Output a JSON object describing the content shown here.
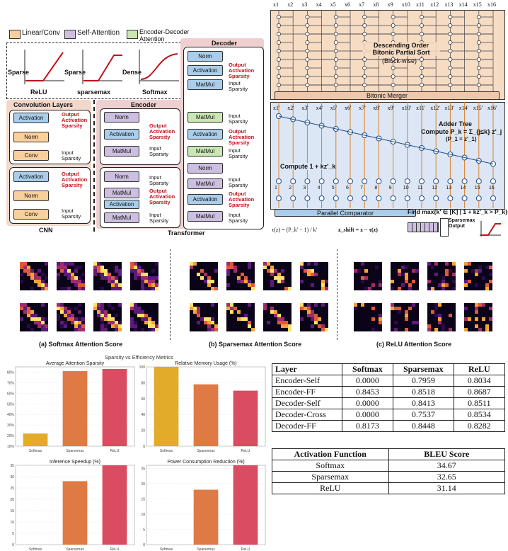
{
  "legend": {
    "linear": "Linear/Conv",
    "attn": "Self-Attention",
    "encdec": "Encoder-Decoder Attention"
  },
  "curves": {
    "relu": "ReLU",
    "sparsemax": "sparsemax",
    "softmax": "Softmax",
    "sparse": "Sparse",
    "dense": "Dense"
  },
  "cnn": {
    "title": "Convolution Layers",
    "label": "CNN",
    "blocks": [
      "Activation",
      "Norm",
      "Conv"
    ]
  },
  "encoder": {
    "title": "Encoder",
    "blocks": [
      "Norm",
      "Activation",
      "MatMul",
      "Norm",
      "MatMul",
      "Activation",
      "MatMul"
    ]
  },
  "decoder": {
    "title": "Decoder",
    "blocks": [
      "Norm",
      "Activation",
      "MatMul",
      "MatMul",
      "Activation",
      "MatMul",
      "Norm",
      "MatMul",
      "Activation",
      "MatMul"
    ]
  },
  "transformer_label": "Transformer",
  "annot": {
    "out": "Output Activation Sparsity",
    "in": "Input Sparsity"
  },
  "hw": {
    "xlabels": [
      "x1",
      "x2",
      "x3",
      "x4",
      "x5",
      "x6",
      "x7",
      "x8",
      "x9",
      "x10",
      "x11",
      "x12",
      "x13",
      "x14",
      "x15",
      "x16"
    ],
    "sort_title": "Descending Order Bitonic Partial Sort",
    "sort_sub": "(Block-wise)",
    "merger": "Bitonic Merger",
    "adder_title": "Adder Tree",
    "adder_formula": "Compute P_k = Σ_{j≤k} z'_j",
    "adder_formula2": "(P_1 = z'_1)",
    "compute1": "Compute 1 + kz'_k",
    "nums": [
      "1",
      "2",
      "3",
      "4",
      "5",
      "6",
      "7",
      "8",
      "9",
      "10",
      "11",
      "12",
      "13",
      "14",
      "15",
      "16"
    ],
    "comparator": "Parallel Comparator",
    "findmax": "Find max{k' ∈ [K] | 1 + kz'_k > P_k}",
    "tau": "τ(z) = (P_k' − 1) / k'",
    "zshift": "z_shift = z − τ(z)",
    "sparsemax_out": "Sparsemax Output"
  },
  "heatmaps": {
    "a": "(a) Softmax Attention Score",
    "b": "(b) Sparsemax Attention Score",
    "c": "(c) ReLU Attention Score"
  },
  "chart_data": [
    {
      "type": "bar",
      "title": "Average Attention Sparsity",
      "suptitle": "Sparsity vs Efficiency Metrics",
      "categories": [
        "Softmax",
        "Sparsemax",
        "ReLU"
      ],
      "values": [
        0.22,
        0.81,
        0.83
      ],
      "ylim": [
        0.1,
        0.85
      ],
      "yticks": [
        "10%",
        "20%",
        "30%",
        "40%",
        "50%",
        "60%",
        "70%",
        "80%"
      ],
      "ytickvals": [
        0.1,
        0.2,
        0.3,
        0.4,
        0.5,
        0.6,
        0.7,
        0.8
      ]
    },
    {
      "type": "bar",
      "title": "Relative Memory Usage (%)",
      "categories": [
        "Softmax",
        "Sparsemax",
        "ReLU"
      ],
      "values": [
        100,
        78,
        70
      ],
      "ylim": [
        0,
        100
      ],
      "yticks": [
        "0",
        "20",
        "40",
        "60",
        "80",
        "100"
      ],
      "ytickvals": [
        0,
        20,
        40,
        60,
        80,
        100
      ]
    },
    {
      "type": "bar",
      "title": "Inference Speedup (%)",
      "categories": [
        "Softmax",
        "Sparsemax",
        "ReLU"
      ],
      "values": [
        0,
        28,
        35
      ],
      "ylim": [
        0,
        35
      ],
      "yticks": [
        "0",
        "5",
        "10",
        "15",
        "20",
        "25",
        "30",
        "35"
      ],
      "ytickvals": [
        0,
        5,
        10,
        15,
        20,
        25,
        30,
        35
      ]
    },
    {
      "type": "bar",
      "title": "Power Consumption Reduction (%)",
      "categories": [
        "Softmax",
        "Sparsemax",
        "ReLU"
      ],
      "values": [
        0,
        18,
        26
      ],
      "ylim": [
        0,
        26
      ],
      "yticks": [
        "0",
        "5",
        "10",
        "15",
        "20",
        "25"
      ],
      "ytickvals": [
        0,
        5,
        10,
        15,
        20,
        25
      ]
    }
  ],
  "bar_colors": [
    "#e2ac2a",
    "#e07a45",
    "#da4c60"
  ],
  "sparsity_table": {
    "headers": [
      "Layer",
      "Softmax",
      "Sparsemax",
      "ReLU"
    ],
    "rows": [
      [
        "Encoder-Self",
        "0.0000",
        "0.7959",
        "0.8034"
      ],
      [
        "Encoder-FF",
        "0.8453",
        "0.8518",
        "0.8687"
      ],
      [
        "Decoder-Self",
        "0.0000",
        "0.8413",
        "0.8511"
      ],
      [
        "Decoder-Cross",
        "0.0000",
        "0.7537",
        "0.8534"
      ],
      [
        "Decoder-FF",
        "0.8173",
        "0.8448",
        "0.8282"
      ]
    ]
  },
  "bleu_table": {
    "headers": [
      "Activation Function",
      "BLEU Score"
    ],
    "rows": [
      [
        "Softmax",
        "34.67"
      ],
      [
        "Sparsemax",
        "32.65"
      ],
      [
        "ReLU",
        "31.14"
      ]
    ]
  }
}
